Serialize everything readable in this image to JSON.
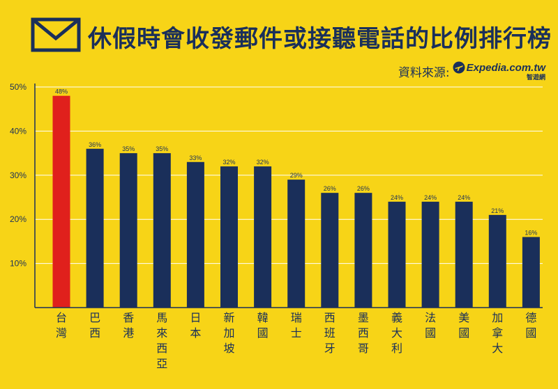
{
  "header": {
    "title": "休假時會收發郵件或接聽電話的比例排行榜",
    "icon": "envelope-icon"
  },
  "source": {
    "label": "資料來源:",
    "logo_text": "Expedia.com.tw",
    "logo_sub": "智遊網",
    "logo_icon": "airplane-icon"
  },
  "colors": {
    "background": "#f7d417",
    "bar": "#1a2f5a",
    "highlight": "#e0201c",
    "grid": "#ffffff"
  },
  "chart_data": {
    "type": "bar",
    "categories": [
      "台灣",
      "巴西",
      "香港",
      "馬來西亞",
      "日本",
      "新加坡",
      "韓國",
      "瑞士",
      "西班牙",
      "墨西哥",
      "義大利",
      "法國",
      "美國",
      "加拿大",
      "德國"
    ],
    "values": [
      48,
      36,
      35,
      35,
      33,
      32,
      32,
      29,
      26,
      26,
      24,
      24,
      24,
      21,
      16
    ],
    "value_labels": [
      "48%",
      "36%",
      "35%",
      "35%",
      "33%",
      "32%",
      "32%",
      "29%",
      "26%",
      "26%",
      "24%",
      "24%",
      "24%",
      "21%",
      "16%"
    ],
    "highlight_index": 0,
    "ylim": [
      0,
      50
    ],
    "yticks": [
      10,
      20,
      30,
      40,
      50
    ],
    "ytick_labels": [
      "10%",
      "20%",
      "30%",
      "40%",
      "50%"
    ],
    "grid": true,
    "title": "休假時會收發郵件或接聽電話的比例排行榜",
    "xlabel": "",
    "ylabel": ""
  }
}
